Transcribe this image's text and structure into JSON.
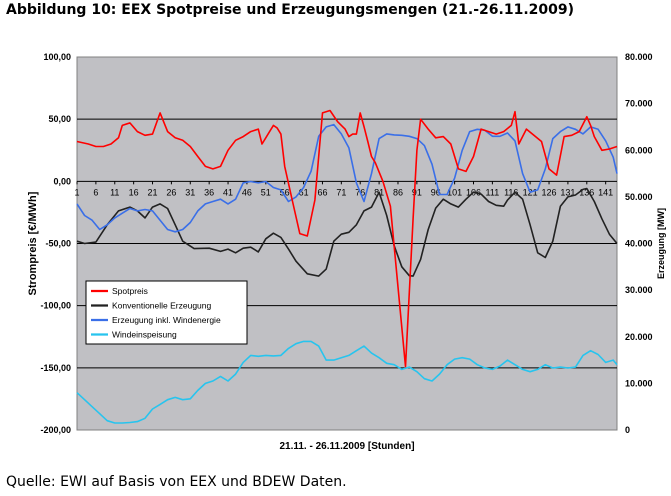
{
  "header": {
    "title": "Abbildung 10: EEX Spotpreise und Erzeugungsmengen (21.-26.11.2009)"
  },
  "footer": {
    "source": "Quelle: EWI auf Basis von EEX und BDEW Daten."
  },
  "colors": {
    "plot_bg": "#c0c0c4",
    "spotpreis": "#ff0000",
    "konventionell": "#222222",
    "erzeugung_wind": "#3a6fe8",
    "windeinspeisung": "#27c4ee"
  },
  "chart_data": {
    "type": "line",
    "xlabel": "21.11. - 26.11.2009 [Stunden]",
    "ylabel_left": "Strompreis [€/MWh]",
    "ylabel_right": "Erzeugung [MW]",
    "ylim_left": [
      -200,
      100
    ],
    "ylim_right": [
      0,
      80000
    ],
    "yticks_left": [
      "100,00",
      "50,00",
      "0,00",
      "-50,00",
      "-100,00",
      "-150,00",
      "-200,00"
    ],
    "yticks_right": [
      "80.000",
      "70.000",
      "60.000",
      "50.000",
      "40.000",
      "30.000",
      "20.000",
      "10.000",
      "0"
    ],
    "xticks": [
      "1",
      "6",
      "11",
      "16",
      "21",
      "26",
      "31",
      "36",
      "41",
      "46",
      "51",
      "56",
      "61",
      "66",
      "71",
      "76",
      "81",
      "86",
      "91",
      "96",
      "101",
      "106",
      "111",
      "116",
      "121",
      "126",
      "131",
      "136",
      "141"
    ],
    "grid": "horizontal",
    "legend_position": "left",
    "legend": [
      "Spotpreis",
      "Konventionelle Erzeugung",
      "Erzeugung inkl. Windenergie",
      "Windeinspeisung"
    ],
    "series": [
      {
        "name": "Spotpreis",
        "axis": "left",
        "x": [
          1,
          4,
          6,
          8,
          10,
          12,
          13,
          15,
          17,
          19,
          21,
          23,
          25,
          27,
          29,
          31,
          33,
          35,
          37,
          39,
          41,
          43,
          45,
          47,
          49,
          50,
          51,
          52,
          53,
          54,
          55,
          56,
          58,
          60,
          62,
          64,
          66,
          68,
          70,
          72,
          73,
          74,
          75,
          76,
          77,
          78,
          79,
          80,
          82,
          84,
          86,
          88,
          90,
          91,
          92,
          94,
          96,
          98,
          100,
          102,
          104,
          106,
          108,
          110,
          112,
          114,
          116,
          117,
          118,
          120,
          122,
          124,
          126,
          128,
          130,
          132,
          134,
          136,
          137,
          138,
          140,
          142,
          144
        ],
        "values": [
          32,
          30,
          28,
          28,
          30,
          35,
          45,
          47,
          40,
          37,
          38,
          55,
          40,
          35,
          33,
          28,
          20,
          12,
          10,
          12,
          25,
          33,
          36,
          40,
          42,
          30,
          35,
          40,
          45,
          43,
          38,
          12,
          -15,
          -42,
          -44,
          -15,
          55,
          57,
          48,
          42,
          36,
          38,
          38,
          55,
          44,
          32,
          20,
          15,
          0,
          -20,
          -85,
          -149,
          -30,
          25,
          50,
          42,
          35,
          36,
          30,
          10,
          8,
          20,
          42,
          40,
          38,
          40,
          45,
          56,
          30,
          42,
          37,
          32,
          10,
          5,
          36,
          37,
          40,
          52,
          45,
          36,
          25,
          26,
          28
        ]
      },
      {
        "name": "Konventionelle Erzeugung",
        "axis": "right",
        "x": [
          1,
          3,
          6,
          9,
          12,
          15,
          17,
          19,
          21,
          23,
          25,
          27,
          29,
          32,
          36,
          39,
          41,
          43,
          45,
          47,
          49,
          51,
          53,
          55,
          57,
          59,
          62,
          65,
          67,
          69,
          71,
          73,
          75,
          77,
          79,
          81,
          83,
          85,
          87,
          89,
          90,
          92,
          94,
          96,
          98,
          100,
          102,
          104,
          106,
          108,
          110,
          112,
          114,
          115,
          117,
          119,
          121,
          123,
          125,
          127,
          129,
          131,
          133,
          135,
          136,
          138,
          140,
          142,
          144
        ],
        "values": [
          40500,
          40000,
          40300,
          44000,
          47000,
          47800,
          47000,
          45500,
          47800,
          48500,
          47500,
          44000,
          40500,
          38900,
          39000,
          38300,
          38800,
          38000,
          39000,
          39200,
          38200,
          41000,
          42200,
          41300,
          38800,
          36200,
          33500,
          33000,
          34500,
          40500,
          42000,
          42400,
          44000,
          47000,
          47800,
          51000,
          46000,
          39500,
          35000,
          33100,
          33000,
          36600,
          43000,
          47600,
          49500,
          48500,
          47800,
          49500,
          51000,
          50600,
          49000,
          48200,
          48000,
          49300,
          51000,
          49500,
          44000,
          38000,
          37000,
          40500,
          48000,
          50000,
          50400,
          51600,
          51800,
          49000,
          45300,
          42000,
          40000
        ]
      },
      {
        "name": "Erzeugung inkl. Windenergie",
        "axis": "right",
        "x": [
          1,
          3,
          5,
          7,
          9,
          11,
          13,
          15,
          17,
          19,
          21,
          23,
          25,
          27,
          29,
          31,
          33,
          35,
          37,
          39,
          41,
          43,
          45,
          47,
          49,
          51,
          53,
          55,
          57,
          59,
          61,
          63,
          65,
          67,
          69,
          71,
          73,
          75,
          77,
          79,
          81,
          83,
          85,
          87,
          89,
          91,
          93,
          95,
          97,
          99,
          101,
          103,
          105,
          107,
          109,
          111,
          113,
          115,
          117,
          119,
          121,
          123,
          125,
          127,
          129,
          131,
          133,
          135,
          137,
          139,
          141,
          143,
          144
        ],
        "values": [
          48500,
          46000,
          45000,
          43000,
          44000,
          45500,
          46500,
          47500,
          47000,
          47300,
          47000,
          45000,
          43000,
          42500,
          43000,
          44500,
          47000,
          48500,
          49000,
          49500,
          48500,
          49500,
          53000,
          53300,
          53000,
          53300,
          52000,
          51500,
          49000,
          50000,
          52000,
          55500,
          63000,
          65000,
          65500,
          63500,
          60500,
          53000,
          49000,
          55000,
          62500,
          63500,
          63300,
          63200,
          63000,
          62500,
          61000,
          57000,
          50500,
          50500,
          54000,
          60000,
          64000,
          64500,
          64300,
          63000,
          63000,
          63700,
          62000,
          55000,
          51000,
          51500,
          56000,
          62500,
          64000,
          65000,
          64500,
          63500,
          65000,
          64500,
          62000,
          58500,
          55000
        ]
      },
      {
        "name": "Windeinspeisung",
        "axis": "right",
        "x": [
          1,
          3,
          5,
          7,
          9,
          11,
          13,
          15,
          17,
          19,
          21,
          23,
          25,
          27,
          29,
          31,
          33,
          35,
          37,
          39,
          41,
          43,
          45,
          47,
          49,
          51,
          53,
          55,
          57,
          59,
          61,
          63,
          65,
          67,
          69,
          71,
          73,
          75,
          77,
          79,
          81,
          83,
          85,
          87,
          89,
          91,
          93,
          95,
          97,
          99,
          101,
          103,
          105,
          107,
          109,
          111,
          113,
          115,
          117,
          119,
          121,
          123,
          125,
          127,
          129,
          131,
          133,
          135,
          137,
          139,
          141,
          143,
          144
        ],
        "values": [
          8000,
          6500,
          5000,
          3500,
          2000,
          1500,
          1500,
          1600,
          1800,
          2500,
          4500,
          5500,
          6500,
          7000,
          6500,
          6700,
          8500,
          10000,
          10500,
          11500,
          10500,
          12000,
          14500,
          16000,
          15800,
          16000,
          15900,
          16000,
          17500,
          18500,
          19000,
          19000,
          18000,
          15000,
          15000,
          15500,
          16000,
          17000,
          18000,
          16500,
          15500,
          14300,
          14000,
          13000,
          13500,
          12500,
          11000,
          10500,
          12000,
          14000,
          15200,
          15500,
          15200,
          14000,
          13300,
          13000,
          13700,
          15000,
          14000,
          13000,
          12500,
          13000,
          14000,
          13300,
          13500,
          13300,
          13500,
          16000,
          17000,
          16200,
          14500,
          15000,
          14000
        ]
      }
    ]
  }
}
